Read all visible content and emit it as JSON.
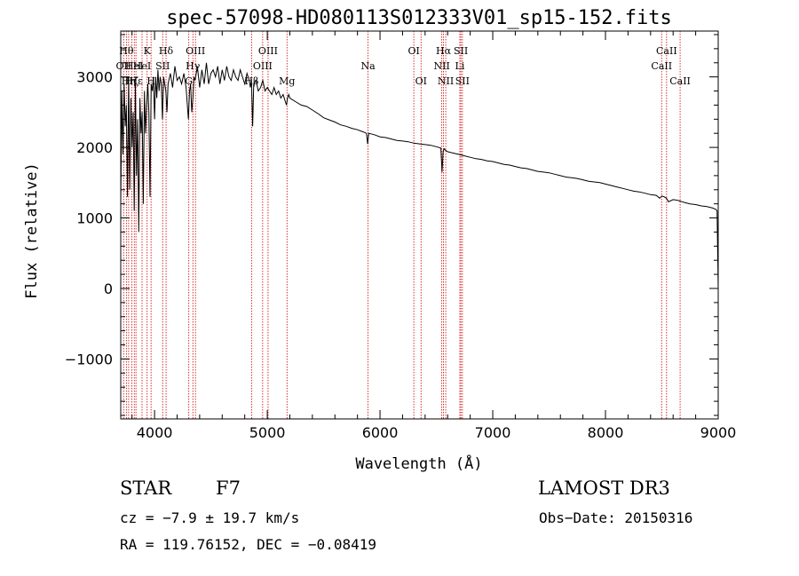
{
  "chart_data": {
    "type": "line",
    "title": "spec-57098-HD080113S012333V01_sp15-152.fits",
    "xlabel": "Wavelength (Å)",
    "ylabel": "Flux (relative)",
    "xlim": [
      3700,
      9000
    ],
    "ylim": [
      -1850,
      3650
    ],
    "x_ticks": [
      {
        "value": 4000,
        "label": "4000"
      },
      {
        "value": 5000,
        "label": "5000"
      },
      {
        "value": 6000,
        "label": "6000"
      },
      {
        "value": 7000,
        "label": "7000"
      },
      {
        "value": 8000,
        "label": "8000"
      },
      {
        "value": 9000,
        "label": "9000"
      }
    ],
    "y_ticks": [
      {
        "value": -1000,
        "label": "−1000"
      },
      {
        "value": 0,
        "label": "0"
      },
      {
        "value": 1000,
        "label": "1000"
      },
      {
        "value": 2000,
        "label": "2000"
      },
      {
        "value": 3000,
        "label": "3000"
      }
    ],
    "series": [
      {
        "name": "spectrum",
        "color": "#000000",
        "x": [
          3700,
          3710,
          3720,
          3730,
          3740,
          3750,
          3760,
          3770,
          3780,
          3790,
          3800,
          3810,
          3820,
          3830,
          3840,
          3850,
          3860,
          3870,
          3880,
          3890,
          3900,
          3910,
          3920,
          3930,
          3940,
          3950,
          3960,
          3970,
          3980,
          3990,
          4000,
          4010,
          4020,
          4030,
          4040,
          4050,
          4060,
          4070,
          4080,
          4090,
          4100,
          4110,
          4120,
          4140,
          4160,
          4180,
          4200,
          4220,
          4240,
          4260,
          4280,
          4300,
          4310,
          4320,
          4330,
          4340,
          4350,
          4360,
          4380,
          4400,
          4420,
          4440,
          4460,
          4480,
          4500,
          4520,
          4540,
          4560,
          4580,
          4600,
          4620,
          4640,
          4660,
          4680,
          4700,
          4720,
          4740,
          4760,
          4780,
          4800,
          4820,
          4840,
          4850,
          4860,
          4870,
          4880,
          4900,
          4920,
          4940,
          4960,
          4980,
          5000,
          5020,
          5040,
          5060,
          5080,
          5100,
          5120,
          5140,
          5160,
          5170,
          5180,
          5190,
          5200,
          5250,
          5300,
          5350,
          5400,
          5450,
          5500,
          5550,
          5600,
          5650,
          5700,
          5750,
          5800,
          5850,
          5880,
          5890,
          5900,
          5950,
          6000,
          6050,
          6100,
          6150,
          6200,
          6250,
          6300,
          6350,
          6400,
          6450,
          6500,
          6540,
          6550,
          6560,
          6570,
          6580,
          6600,
          6650,
          6700,
          6750,
          6800,
          6850,
          6900,
          6950,
          7000,
          7050,
          7100,
          7150,
          7200,
          7250,
          7300,
          7350,
          7400,
          7450,
          7500,
          7550,
          7600,
          7650,
          7700,
          7750,
          7800,
          7850,
          7900,
          7950,
          8000,
          8050,
          8100,
          8150,
          8200,
          8250,
          8300,
          8350,
          8400,
          8450,
          8480,
          8500,
          8520,
          8540,
          8560,
          8600,
          8640,
          8660,
          8680,
          8700,
          8750,
          8800,
          8850,
          8900,
          8950,
          8980,
          8990,
          9000
        ],
        "y": [
          1200,
          2800,
          1900,
          2900,
          2300,
          2600,
          1300,
          3000,
          1400,
          2700,
          2000,
          2500,
          1100,
          2900,
          1600,
          2400,
          800,
          2700,
          2200,
          2500,
          1200,
          2800,
          2200,
          2600,
          2900,
          2500,
          1300,
          2900,
          2800,
          3000,
          2400,
          3000,
          2700,
          3100,
          2800,
          3000,
          2900,
          2400,
          3000,
          2900,
          2800,
          2500,
          2900,
          3050,
          2850,
          3150,
          2950,
          3000,
          2900,
          3050,
          2850,
          2400,
          2800,
          2900,
          2500,
          2700,
          3000,
          2950,
          3150,
          2850,
          3100,
          2900,
          3200,
          2900,
          3050,
          3100,
          3000,
          3150,
          2900,
          3100,
          2950,
          3150,
          3000,
          2950,
          3100,
          3000,
          2950,
          3100,
          3000,
          2900,
          3050,
          2950,
          2850,
          2950,
          2300,
          2900,
          2950,
          2800,
          2850,
          2950,
          2800,
          2850,
          2800,
          2750,
          2850,
          2750,
          2800,
          2700,
          2750,
          2650,
          2600,
          2700,
          2750,
          2700,
          2650,
          2600,
          2580,
          2530,
          2480,
          2420,
          2390,
          2360,
          2320,
          2300,
          2270,
          2250,
          2220,
          2200,
          2050,
          2200,
          2180,
          2150,
          2140,
          2120,
          2100,
          2090,
          2080,
          2060,
          2050,
          2040,
          2030,
          2010,
          1990,
          1650,
          1950,
          1980,
          1960,
          1940,
          1920,
          1900,
          1880,
          1860,
          1840,
          1830,
          1810,
          1800,
          1780,
          1760,
          1750,
          1730,
          1710,
          1700,
          1680,
          1660,
          1650,
          1640,
          1620,
          1600,
          1580,
          1570,
          1560,
          1540,
          1520,
          1510,
          1500,
          1480,
          1460,
          1440,
          1420,
          1400,
          1380,
          1370,
          1350,
          1330,
          1320,
          1280,
          1310,
          1300,
          1280,
          1230,
          1260,
          1250,
          1240,
          1230,
          1220,
          1200,
          1190,
          1170,
          1160,
          1140,
          1120,
          1100,
          0
        ]
      }
    ],
    "lines": [
      {
        "x": 3726,
        "label": "OII",
        "row": 1
      },
      {
        "x": 3750,
        "label": "Hθ",
        "row": 0
      },
      {
        "x": 3770,
        "label": "Hη",
        "row": 2
      },
      {
        "x": 3798,
        "label": "Hζ",
        "row": 2
      },
      {
        "x": 3820,
        "label": "HeI",
        "row": 1
      },
      {
        "x": 3835,
        "label": "Hε",
        "row": 2
      },
      {
        "x": 3889,
        "label": "HeI",
        "row": 1
      },
      {
        "x": 3934,
        "label": "K",
        "row": 0
      },
      {
        "x": 3969,
        "label": "H",
        "row": 2
      },
      {
        "x": 4072,
        "label": "SII",
        "row": 1
      },
      {
        "x": 4102,
        "label": "Hδ",
        "row": 0
      },
      {
        "x": 4304,
        "label": "G",
        "row": 2
      },
      {
        "x": 4340,
        "label": "Hγ",
        "row": 1
      },
      {
        "x": 4363,
        "label": "OIII",
        "row": 0
      },
      {
        "x": 4861,
        "label": "Hβ",
        "row": 2
      },
      {
        "x": 4959,
        "label": "OIII",
        "row": 1
      },
      {
        "x": 5007,
        "label": "OIII",
        "row": 0
      },
      {
        "x": 5175,
        "label": "Mg",
        "row": 2
      },
      {
        "x": 5894,
        "label": "Na",
        "row": 1
      },
      {
        "x": 6300,
        "label": "OI",
        "row": 0
      },
      {
        "x": 6364,
        "label": "OI",
        "row": 2
      },
      {
        "x": 6548,
        "label": "NII",
        "row": 1
      },
      {
        "x": 6563,
        "label": "Hα",
        "row": 0
      },
      {
        "x": 6583,
        "label": "NII",
        "row": 2
      },
      {
        "x": 6708,
        "label": "Li",
        "row": 1
      },
      {
        "x": 6717,
        "label": "SII",
        "row": 0
      },
      {
        "x": 6731,
        "label": "SII",
        "row": 2
      },
      {
        "x": 8498,
        "label": "CaII",
        "row": 1
      },
      {
        "x": 8542,
        "label": "CaII",
        "row": 0
      },
      {
        "x": 8662,
        "label": "CaII",
        "row": 2
      }
    ],
    "line_color": "#cc0000",
    "axis_color": "#000000"
  },
  "footer": {
    "class_label": "STAR",
    "subclass": "F7",
    "survey": "LAMOST DR3",
    "cz": "cz = −7.9 ± 19.7 km/s",
    "obs_date": "Obs−Date: 20150316",
    "radec": "RA = 119.76152, DEC =  −0.08419"
  }
}
